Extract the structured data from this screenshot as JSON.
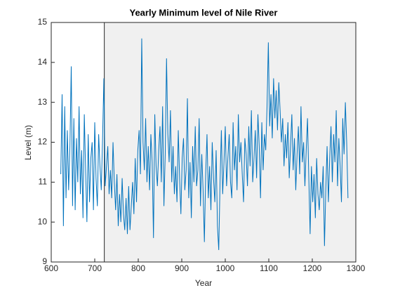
{
  "chart_data": {
    "type": "line",
    "title": "Yearly Minimum level of Nile River",
    "xlabel": "Year",
    "ylabel": "Level (m)",
    "xlim": [
      600,
      1300
    ],
    "ylim": [
      9,
      15
    ],
    "xticks": [
      600,
      700,
      800,
      900,
      1000,
      1100,
      1200,
      1300
    ],
    "yticks": [
      9,
      10,
      11,
      12,
      13,
      14,
      15
    ],
    "shaded_region": [
      722,
      1300
    ],
    "shade_color": "#f0f0f0",
    "grid": false,
    "x": [
      622,
      625,
      628,
      631,
      634,
      637,
      640,
      643,
      646,
      649,
      652,
      655,
      658,
      661,
      664,
      667,
      670,
      673,
      676,
      679,
      682,
      685,
      688,
      691,
      694,
      697,
      700,
      703,
      706,
      709,
      712,
      715,
      718,
      721,
      724,
      727,
      730,
      733,
      736,
      739,
      742,
      745,
      748,
      751,
      754,
      757,
      760,
      763,
      766,
      769,
      772,
      775,
      778,
      781,
      784,
      787,
      790,
      793,
      796,
      799,
      802,
      805,
      808,
      811,
      814,
      817,
      820,
      823,
      826,
      829,
      832,
      835,
      838,
      841,
      844,
      847,
      850,
      853,
      856,
      859,
      862,
      865,
      868,
      871,
      874,
      877,
      880,
      883,
      886,
      889,
      892,
      895,
      898,
      901,
      904,
      907,
      910,
      913,
      916,
      919,
      922,
      925,
      928,
      931,
      934,
      937,
      940,
      943,
      946,
      949,
      952,
      955,
      958,
      961,
      964,
      967,
      970,
      973,
      976,
      979,
      982,
      985,
      988,
      991,
      994,
      997,
      1000,
      1003,
      1006,
      1009,
      1012,
      1015,
      1018,
      1021,
      1024,
      1027,
      1030,
      1033,
      1036,
      1039,
      1042,
      1045,
      1048,
      1051,
      1054,
      1057,
      1060,
      1063,
      1066,
      1069,
      1072,
      1075,
      1078,
      1081,
      1084,
      1087,
      1090,
      1093,
      1096,
      1099,
      1102,
      1105,
      1108,
      1111,
      1114,
      1117,
      1120,
      1123,
      1126,
      1129,
      1132,
      1135,
      1138,
      1141,
      1144,
      1147,
      1150,
      1153,
      1156,
      1159,
      1162,
      1165,
      1168,
      1171,
      1174,
      1177,
      1180,
      1183,
      1186,
      1189,
      1192,
      1195,
      1198,
      1201,
      1204,
      1207,
      1210,
      1213,
      1216,
      1219,
      1222,
      1225,
      1228,
      1231,
      1234,
      1237,
      1240,
      1243,
      1246,
      1249,
      1252,
      1255,
      1258,
      1261,
      1264,
      1267,
      1270,
      1273,
      1276,
      1279,
      1282
    ],
    "series": [
      {
        "color": "#0072bd",
        "values": [
          11.2,
          13.2,
          9.9,
          12.9,
          10.6,
          12.3,
          10.8,
          11.9,
          13.9,
          10.4,
          12.6,
          10.3,
          12.1,
          11.0,
          12.9,
          10.7,
          11.8,
          10.1,
          12.7,
          11.3,
          10.0,
          12.2,
          10.5,
          11.6,
          12.0,
          10.3,
          12.5,
          11.1,
          10.4,
          12.2,
          11.4,
          10.8,
          12.1,
          13.6,
          10.9,
          11.4,
          11.9,
          10.7,
          11.3,
          10.6,
          12.0,
          11.0,
          10.3,
          11.2,
          9.9,
          10.7,
          10.0,
          11.1,
          10.2,
          9.8,
          10.6,
          9.7,
          10.9,
          9.8,
          10.4,
          11.0,
          10.2,
          11.6,
          10.5,
          11.8,
          12.3,
          11.2,
          14.6,
          12.0,
          11.3,
          12.6,
          11.0,
          11.9,
          10.8,
          12.2,
          11.5,
          9.6,
          12.7,
          11.4,
          10.9,
          11.8,
          12.4,
          11.0,
          12.9,
          10.4,
          11.7,
          14.1,
          12.2,
          11.5,
          12.8,
          11.0,
          11.9,
          10.7,
          11.4,
          10.5,
          12.3,
          11.1,
          10.2,
          11.6,
          12.1,
          10.8,
          11.3,
          13.1,
          10.6,
          11.5,
          10.1,
          11.9,
          11.0,
          12.4,
          10.9,
          11.3,
          12.6,
          10.4,
          11.7,
          10.8,
          9.5,
          11.2,
          12.2,
          10.6,
          11.4,
          10.3,
          12.0,
          11.1,
          10.5,
          11.8,
          9.9,
          9.3,
          11.0,
          12.3,
          10.7,
          11.5,
          12.4,
          10.9,
          11.6,
          12.2,
          11.0,
          10.6,
          12.5,
          11.3,
          11.9,
          10.8,
          12.7,
          11.5,
          12.0,
          11.2,
          10.5,
          12.1,
          11.7,
          10.9,
          12.4,
          11.4,
          12.8,
          11.0,
          11.6,
          12.3,
          11.1,
          12.7,
          11.9,
          10.6,
          12.5,
          11.3,
          12.2,
          11.8,
          12.9,
          14.5,
          12.4,
          13.2,
          12.1,
          13.6,
          12.6,
          13.3,
          12.3,
          13.5,
          12.8,
          12.0,
          12.6,
          11.4,
          12.2,
          11.6,
          12.5,
          11.1,
          11.9,
          12.7,
          11.3,
          12.1,
          10.8,
          11.7,
          12.4,
          11.2,
          12.9,
          11.5,
          12.0,
          10.9,
          11.8,
          12.6,
          11.1,
          9.7,
          11.4,
          10.5,
          11.2,
          10.1,
          11.6,
          10.7,
          10.3,
          11.0,
          10.6,
          11.4,
          9.4,
          10.8,
          11.9,
          10.5,
          11.6,
          12.4,
          11.0,
          12.2,
          11.5,
          12.8,
          10.9,
          12.1,
          11.4,
          10.5,
          12.6,
          11.7,
          13.0,
          12.0,
          10.6
        ]
      }
    ]
  }
}
